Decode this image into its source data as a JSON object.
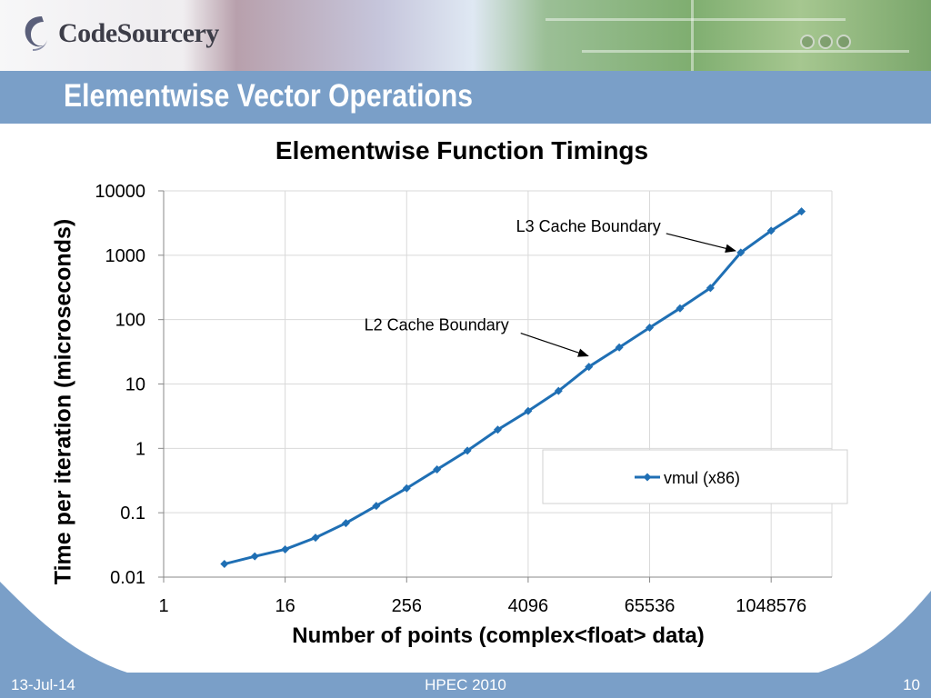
{
  "header": {
    "logo_text": "CodeSourcery",
    "slide_title": "Elementwise Vector Operations"
  },
  "footer": {
    "date": "13-Jul-14",
    "center": "HPEC 2010",
    "page": "10"
  },
  "chart_data": {
    "type": "line",
    "title": "Elementwise Function Timings",
    "xlabel": "Number of points (complex<float> data)",
    "ylabel": "Time per iteration (microseconds)",
    "x_scale": "log2",
    "y_scale": "log10",
    "xlim": [
      1,
      4194304
    ],
    "ylim": [
      0.01,
      10000
    ],
    "x_tick_labels": [
      "1",
      "16",
      "256",
      "4096",
      "65536",
      "1048576"
    ],
    "x_ticks": [
      1,
      16,
      256,
      4096,
      65536,
      1048576
    ],
    "y_tick_labels": [
      "10000",
      "1000",
      "100",
      "10",
      "1",
      "0.1",
      "0.01"
    ],
    "y_ticks": [
      10000,
      1000,
      100,
      10,
      1,
      0.1,
      0.01
    ],
    "grid": true,
    "legend": "right",
    "series": [
      {
        "name": "vmul (x86)",
        "color": "#1f6fb4",
        "marker": "diamond",
        "x": [
          4,
          8,
          16,
          32,
          64,
          128,
          256,
          512,
          1024,
          2048,
          4096,
          8192,
          16384,
          32768,
          65536,
          131072,
          262144,
          524288,
          1048576,
          2097152
        ],
        "y": [
          0.016,
          0.021,
          0.027,
          0.041,
          0.069,
          0.128,
          0.24,
          0.47,
          0.92,
          1.95,
          3.8,
          7.8,
          18.5,
          37,
          75,
          150,
          310,
          1100,
          2400,
          4800
        ]
      }
    ],
    "annotations": [
      {
        "text": "L3 Cache Boundary",
        "x": 524288,
        "y": 1100
      },
      {
        "text": "L2 Cache Boundary",
        "x": 16384,
        "y": 18.5
      }
    ]
  }
}
